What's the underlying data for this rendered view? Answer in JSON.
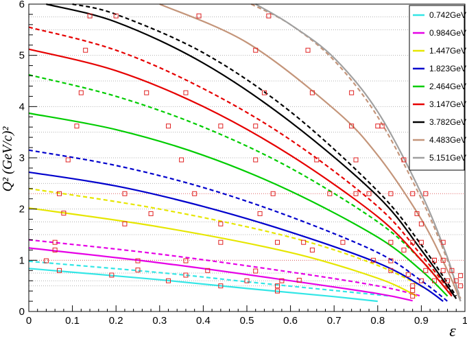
{
  "chart_data": {
    "type": "line",
    "xlabel": "ε",
    "ylabel": "Q² (GeV/c)²",
    "xlim": [
      0,
      1
    ],
    "ylim": [
      0,
      6
    ],
    "x_ticks": [
      "0",
      "0.1",
      "0.2",
      "0.3",
      "0.4",
      "0.5",
      "0.6",
      "0.7",
      "0.8",
      "0.9",
      "1"
    ],
    "y_ticks": [
      "0",
      "1",
      "2",
      "3",
      "4",
      "5",
      "6"
    ],
    "grid_y_dotted": [
      0.5,
      0.6,
      0.75,
      1.0,
      1.5,
      1.75,
      2.0,
      2.5,
      3.0,
      3.5,
      4.0,
      4.5,
      5.0,
      5.5,
      5.75
    ],
    "grid_y_red_dotted": [
      1.0,
      2.3
    ],
    "legend_position": "top-right",
    "series": [
      {
        "name": "0.742GeV",
        "color": "#33e6e6",
        "solid": [
          [
            0,
            0.84
          ],
          [
            0.3,
            0.62
          ],
          [
            0.5,
            0.45
          ],
          [
            0.7,
            0.29
          ],
          [
            0.8,
            0.2
          ]
        ],
        "dashed": [
          [
            0,
            0.98
          ],
          [
            0.3,
            0.76
          ],
          [
            0.5,
            0.58
          ],
          [
            0.7,
            0.41
          ],
          [
            0.83,
            0.3
          ]
        ],
        "markers": [
          [
            0.04,
            0.99
          ],
          [
            0.07,
            0.8
          ],
          [
            0.19,
            0.71
          ],
          [
            0.25,
            0.81
          ],
          [
            0.32,
            0.6
          ],
          [
            0.36,
            0.71
          ],
          [
            0.44,
            0.5
          ],
          [
            0.5,
            0.6
          ],
          [
            0.57,
            0.4
          ],
          [
            0.57,
            0.5
          ]
        ]
      },
      {
        "name": "0.984GeV",
        "color": "#e600e6",
        "solid": [
          [
            0,
            1.24
          ],
          [
            0.3,
            0.95
          ],
          [
            0.6,
            0.6
          ],
          [
            0.8,
            0.35
          ],
          [
            0.88,
            0.21
          ]
        ],
        "dashed": [
          [
            0,
            1.4
          ],
          [
            0.3,
            1.12
          ],
          [
            0.6,
            0.77
          ],
          [
            0.8,
            0.5
          ],
          [
            0.9,
            0.3
          ]
        ],
        "markers": [
          [
            0.06,
            1.35
          ],
          [
            0.06,
            1.2
          ],
          [
            0.25,
            0.99
          ],
          [
            0.36,
            0.99
          ],
          [
            0.41,
            0.8
          ],
          [
            0.52,
            0.79
          ],
          [
            0.58,
            0.6
          ],
          [
            0.62,
            0.61
          ],
          [
            0.88,
            0.3
          ],
          [
            0.88,
            0.41
          ]
        ]
      },
      {
        "name": "1.447GeV",
        "color": "#e6e600",
        "solid": [
          [
            0,
            2.02
          ],
          [
            0.3,
            1.65
          ],
          [
            0.6,
            1.15
          ],
          [
            0.8,
            0.65
          ],
          [
            0.89,
            0.3
          ]
        ],
        "dashed": [
          [
            0,
            2.4
          ],
          [
            0.3,
            2.0
          ],
          [
            0.6,
            1.45
          ],
          [
            0.8,
            0.9
          ],
          [
            0.92,
            0.4
          ]
        ],
        "markers": [
          [
            0.08,
            1.92
          ],
          [
            0.07,
            2.3
          ],
          [
            0.22,
            1.71
          ],
          [
            0.28,
            1.91
          ],
          [
            0.44,
            1.35
          ],
          [
            0.44,
            1.71
          ],
          [
            0.57,
            1.35
          ],
          [
            0.65,
            1.2
          ],
          [
            0.83,
            0.8
          ],
          [
            0.88,
            0.5
          ]
        ]
      },
      {
        "name": "1.823GeV",
        "color": "#0000cc",
        "solid": [
          [
            0,
            2.72
          ],
          [
            0.2,
            2.45
          ],
          [
            0.4,
            2.05
          ],
          [
            0.6,
            1.55
          ],
          [
            0.8,
            0.95
          ],
          [
            0.9,
            0.5
          ],
          [
            0.95,
            0.2
          ]
        ],
        "dashed": [
          [
            0,
            3.15
          ],
          [
            0.2,
            2.85
          ],
          [
            0.4,
            2.42
          ],
          [
            0.6,
            1.85
          ],
          [
            0.8,
            1.15
          ],
          [
            0.9,
            0.6
          ],
          [
            0.96,
            0.2
          ]
        ],
        "markers": [
          [
            0.09,
            2.96
          ],
          [
            0.22,
            2.3
          ],
          [
            0.38,
            2.3
          ],
          [
            0.53,
            1.91
          ],
          [
            0.63,
            1.35
          ],
          [
            0.72,
            1.35
          ],
          [
            0.79,
            1.0
          ],
          [
            0.83,
            0.99
          ],
          [
            0.87,
            0.72
          ],
          [
            0.9,
            0.6
          ]
        ]
      },
      {
        "name": "2.464GeV",
        "color": "#00cc00",
        "solid": [
          [
            0,
            3.87
          ],
          [
            0.2,
            3.55
          ],
          [
            0.4,
            3.05
          ],
          [
            0.6,
            2.35
          ],
          [
            0.8,
            1.45
          ],
          [
            0.9,
            0.8
          ],
          [
            0.96,
            0.3
          ]
        ],
        "dashed": [
          [
            0,
            4.62
          ],
          [
            0.2,
            4.2
          ],
          [
            0.4,
            3.6
          ],
          [
            0.6,
            2.8
          ],
          [
            0.8,
            1.75
          ],
          [
            0.9,
            1.0
          ],
          [
            0.97,
            0.3
          ]
        ],
        "markers": [
          [
            0.11,
            3.62
          ],
          [
            0.12,
            4.27
          ],
          [
            0.35,
            2.96
          ],
          [
            0.52,
            2.96
          ],
          [
            0.56,
            2.3
          ],
          [
            0.69,
            2.3
          ],
          [
            0.83,
            1.35
          ],
          [
            0.86,
            1.2
          ],
          [
            0.91,
            0.8
          ],
          [
            0.93,
            0.6
          ]
        ]
      },
      {
        "name": "3.147GeV",
        "color": "#e60000",
        "solid": [
          [
            0,
            5.12
          ],
          [
            0.2,
            4.7
          ],
          [
            0.4,
            4.0
          ],
          [
            0.6,
            3.05
          ],
          [
            0.8,
            1.85
          ],
          [
            0.9,
            1.0
          ],
          [
            0.97,
            0.3
          ]
        ],
        "dashed": [
          [
            0,
            5.55
          ],
          [
            0.2,
            5.1
          ],
          [
            0.4,
            4.35
          ],
          [
            0.6,
            3.35
          ],
          [
            0.8,
            2.05
          ],
          [
            0.9,
            1.1
          ],
          [
            0.975,
            0.3
          ]
        ],
        "markers": [
          [
            0.13,
            5.1
          ],
          [
            0.27,
            4.27
          ],
          [
            0.36,
            4.27
          ],
          [
            0.44,
            3.62
          ],
          [
            0.52,
            3.62
          ],
          [
            0.66,
            2.96
          ],
          [
            0.75,
            2.3
          ],
          [
            0.78,
            2.3
          ],
          [
            0.88,
            1.35
          ],
          [
            0.93,
            1.0
          ]
        ]
      },
      {
        "name": "3.782GeV",
        "color": "#000000",
        "solid": [
          [
            0.04,
            6.0
          ],
          [
            0.2,
            5.65
          ],
          [
            0.4,
            4.85
          ],
          [
            0.6,
            3.7
          ],
          [
            0.8,
            2.25
          ],
          [
            0.9,
            1.2
          ],
          [
            0.98,
            0.25
          ]
        ],
        "dashed": [
          [
            0.1,
            6.0
          ],
          [
            0.2,
            5.8
          ],
          [
            0.4,
            5.05
          ],
          [
            0.6,
            3.9
          ],
          [
            0.8,
            2.35
          ],
          [
            0.9,
            1.3
          ],
          [
            0.98,
            0.3
          ]
        ],
        "markers": [
          [
            0.14,
            5.77
          ],
          [
            0.2,
            5.77
          ],
          [
            0.32,
            3.62
          ],
          [
            0.54,
            4.27
          ],
          [
            0.75,
            2.96
          ],
          [
            0.83,
            2.3
          ],
          [
            0.9,
            1.35
          ],
          [
            0.93,
            1.0
          ],
          [
            0.95,
            0.8
          ],
          [
            0.96,
            0.6
          ]
        ]
      },
      {
        "name": "4.483GeV",
        "color": "#c4957a",
        "solid": [
          [
            0.3,
            6.0
          ],
          [
            0.5,
            5.25
          ],
          [
            0.7,
            3.95
          ],
          [
            0.8,
            3.05
          ],
          [
            0.9,
            1.8
          ],
          [
            0.96,
            0.8
          ],
          [
            0.99,
            0.2
          ]
        ],
        "dashed": [
          [
            0.51,
            6.0
          ],
          [
            0.6,
            5.6
          ],
          [
            0.7,
            4.9
          ],
          [
            0.8,
            3.8
          ],
          [
            0.9,
            2.2
          ],
          [
            0.96,
            1.0
          ],
          [
            0.99,
            0.25
          ]
        ],
        "markers": [
          [
            0.39,
            5.77
          ],
          [
            0.52,
            5.1
          ],
          [
            0.65,
            4.27
          ],
          [
            0.74,
            3.62
          ],
          [
            0.8,
            3.62
          ],
          [
            0.86,
            2.96
          ],
          [
            0.88,
            2.3
          ],
          [
            0.89,
            1.91
          ],
          [
            0.9,
            1.71
          ],
          [
            0.95,
            1.0
          ]
        ]
      },
      {
        "name": "5.151GeV",
        "color": "#a0a0a0",
        "solid": [
          [
            0.52,
            6.0
          ],
          [
            0.6,
            5.6
          ],
          [
            0.7,
            4.95
          ],
          [
            0.8,
            3.9
          ],
          [
            0.9,
            2.3
          ],
          [
            0.96,
            1.05
          ],
          [
            0.99,
            0.2
          ]
        ],
        "dashed": [],
        "markers": [
          [
            0.55,
            5.77
          ],
          [
            0.64,
            5.1
          ],
          [
            0.74,
            4.27
          ],
          [
            0.81,
            3.62
          ],
          [
            0.91,
            2.3
          ],
          [
            0.95,
            1.35
          ],
          [
            0.97,
            0.8
          ],
          [
            0.98,
            0.6
          ],
          [
            0.99,
            0.5
          ],
          [
            0.99,
            0.7
          ]
        ]
      }
    ]
  }
}
